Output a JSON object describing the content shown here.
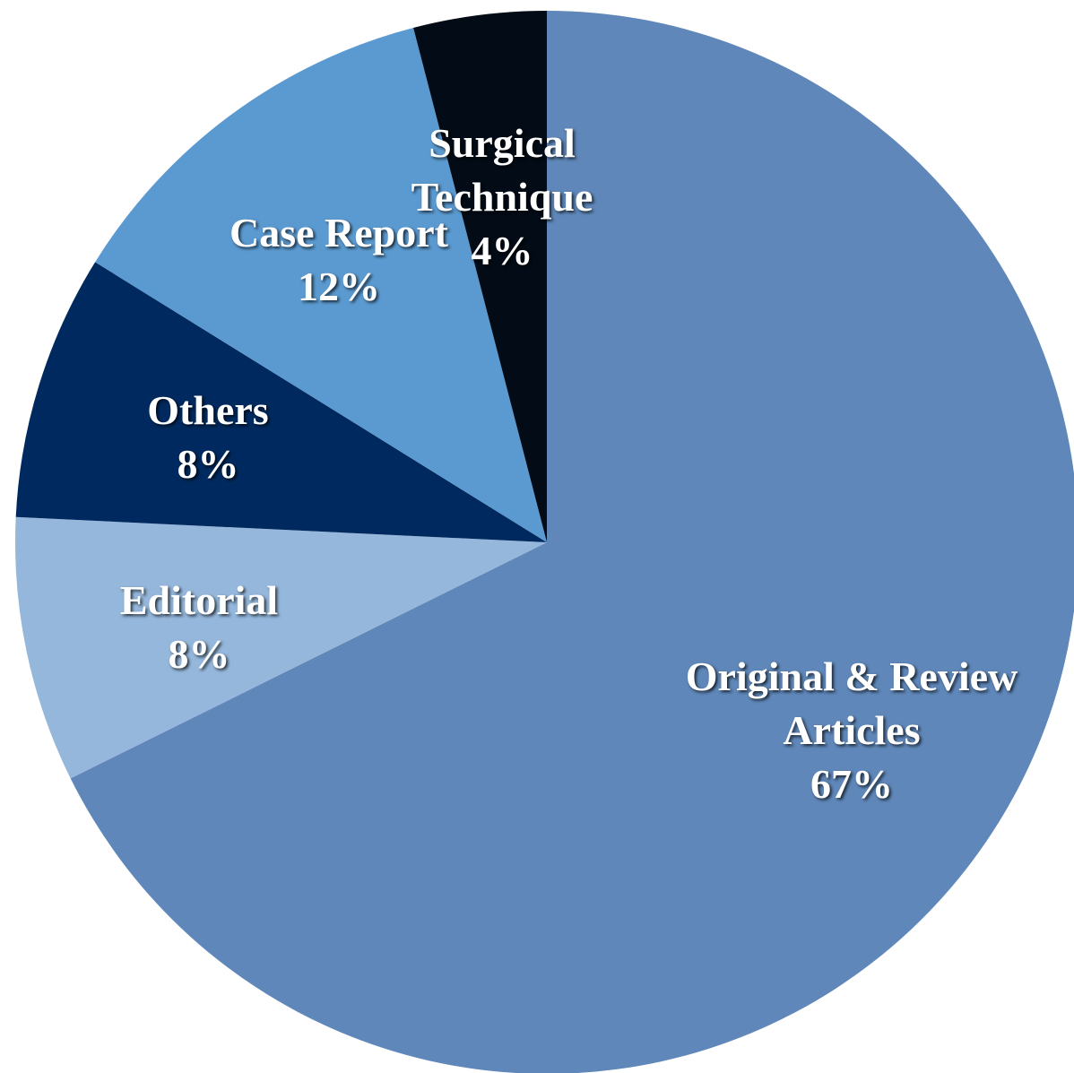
{
  "chart_data": {
    "type": "pie",
    "categories": [
      "Original & Review Articles",
      "Editorial",
      "Others",
      "Case Report",
      "Surgical Technique"
    ],
    "values": [
      67,
      8,
      8,
      12,
      4
    ],
    "value_labels": [
      "67%",
      "8%",
      "8%",
      "12%",
      "4%"
    ],
    "colors": [
      "#5f87b9",
      "#95b7db",
      "#002a5f",
      "#5b9ad0",
      "#020b16"
    ]
  }
}
